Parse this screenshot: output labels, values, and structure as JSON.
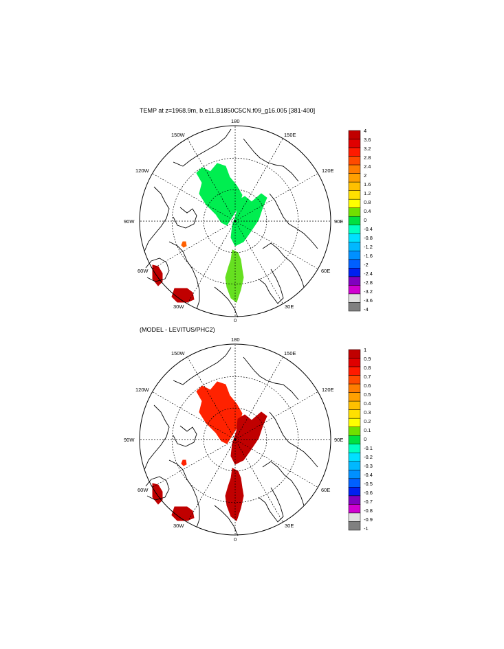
{
  "panels": [
    {
      "title": "TEMP at z=1968.9m, b.e11.B1850C5CN.f09_g16.005 [381-400]",
      "lon_labels": {
        "n": "180",
        "nw": "150W",
        "ne": "150E",
        "wnw": "120W",
        "ene": "120E",
        "w": "90W",
        "e": "90E",
        "wsw": "60W",
        "ese": "60E",
        "sw": "30W",
        "se": "30E",
        "s": "0"
      },
      "colorbar": {
        "labels": [
          "4",
          "3.6",
          "3.2",
          "2.8",
          "2.4",
          "2",
          "1.6",
          "1.2",
          "0.8",
          "0.4",
          "0",
          "-0.4",
          "-0.8",
          "-1.2",
          "-1.6",
          "-2",
          "-2.4",
          "-2.8",
          "-3.2",
          "-3.6",
          "-4"
        ],
        "colors": [
          "#c00000",
          "#e00000",
          "#ff1a00",
          "#ff4a00",
          "#ff7d00",
          "#ffa000",
          "#ffc000",
          "#ffe000",
          "#ffff00",
          "#70e000",
          "#00e040",
          "#00ffc0",
          "#00e0ff",
          "#00b8ff",
          "#0090ff",
          "#0060ff",
          "#0020f0",
          "#8000c0",
          "#d000d0",
          "#e0e0e0",
          "#808080"
        ]
      },
      "fields": [
        {
          "name": "pacific-arctic",
          "color": "#00ee50"
        },
        {
          "name": "eurasian-basin",
          "color": "#00ee50"
        },
        {
          "name": "nordic-seas",
          "color": "#66e020"
        },
        {
          "name": "labrador",
          "color": "#c00000"
        },
        {
          "name": "irminger",
          "color": "#c00000"
        },
        {
          "name": "baffin",
          "color": "#ff6000"
        }
      ]
    },
    {
      "title": "(MODEL - LEVITUS/PHC2)",
      "lon_labels": {
        "n": "180",
        "nw": "150W",
        "ne": "150E",
        "wnw": "120W",
        "ene": "120E",
        "w": "90W",
        "e": "90E",
        "wsw": "60W",
        "ese": "60E",
        "sw": "30W",
        "se": "30E",
        "s": "0"
      },
      "colorbar": {
        "labels": [
          "1",
          "0.9",
          "0.8",
          "0.7",
          "0.6",
          "0.5",
          "0.4",
          "0.3",
          "0.2",
          "0.1",
          "0",
          "-0.1",
          "-0.2",
          "-0.3",
          "-0.4",
          "-0.5",
          "-0.6",
          "-0.7",
          "-0.8",
          "-0.9",
          "-1"
        ],
        "colors": [
          "#c00000",
          "#e00000",
          "#ff1a00",
          "#ff4a00",
          "#ff7d00",
          "#ffa000",
          "#ffc000",
          "#ffe000",
          "#ffff00",
          "#70e000",
          "#00e040",
          "#00ffc0",
          "#00e0ff",
          "#00b8ff",
          "#0090ff",
          "#0060ff",
          "#0020f0",
          "#8000c0",
          "#d000d0",
          "#e0e0e0",
          "#808080"
        ]
      },
      "fields": [
        {
          "name": "pacific-arctic",
          "color": "#ff2200"
        },
        {
          "name": "eurasian-basin",
          "color": "#c00000"
        },
        {
          "name": "nordic-seas",
          "color": "#c00000"
        },
        {
          "name": "labrador",
          "color": "#c00000"
        },
        {
          "name": "irminger",
          "color": "#c00000"
        },
        {
          "name": "baffin",
          "color": "#ff2200"
        }
      ]
    }
  ]
}
